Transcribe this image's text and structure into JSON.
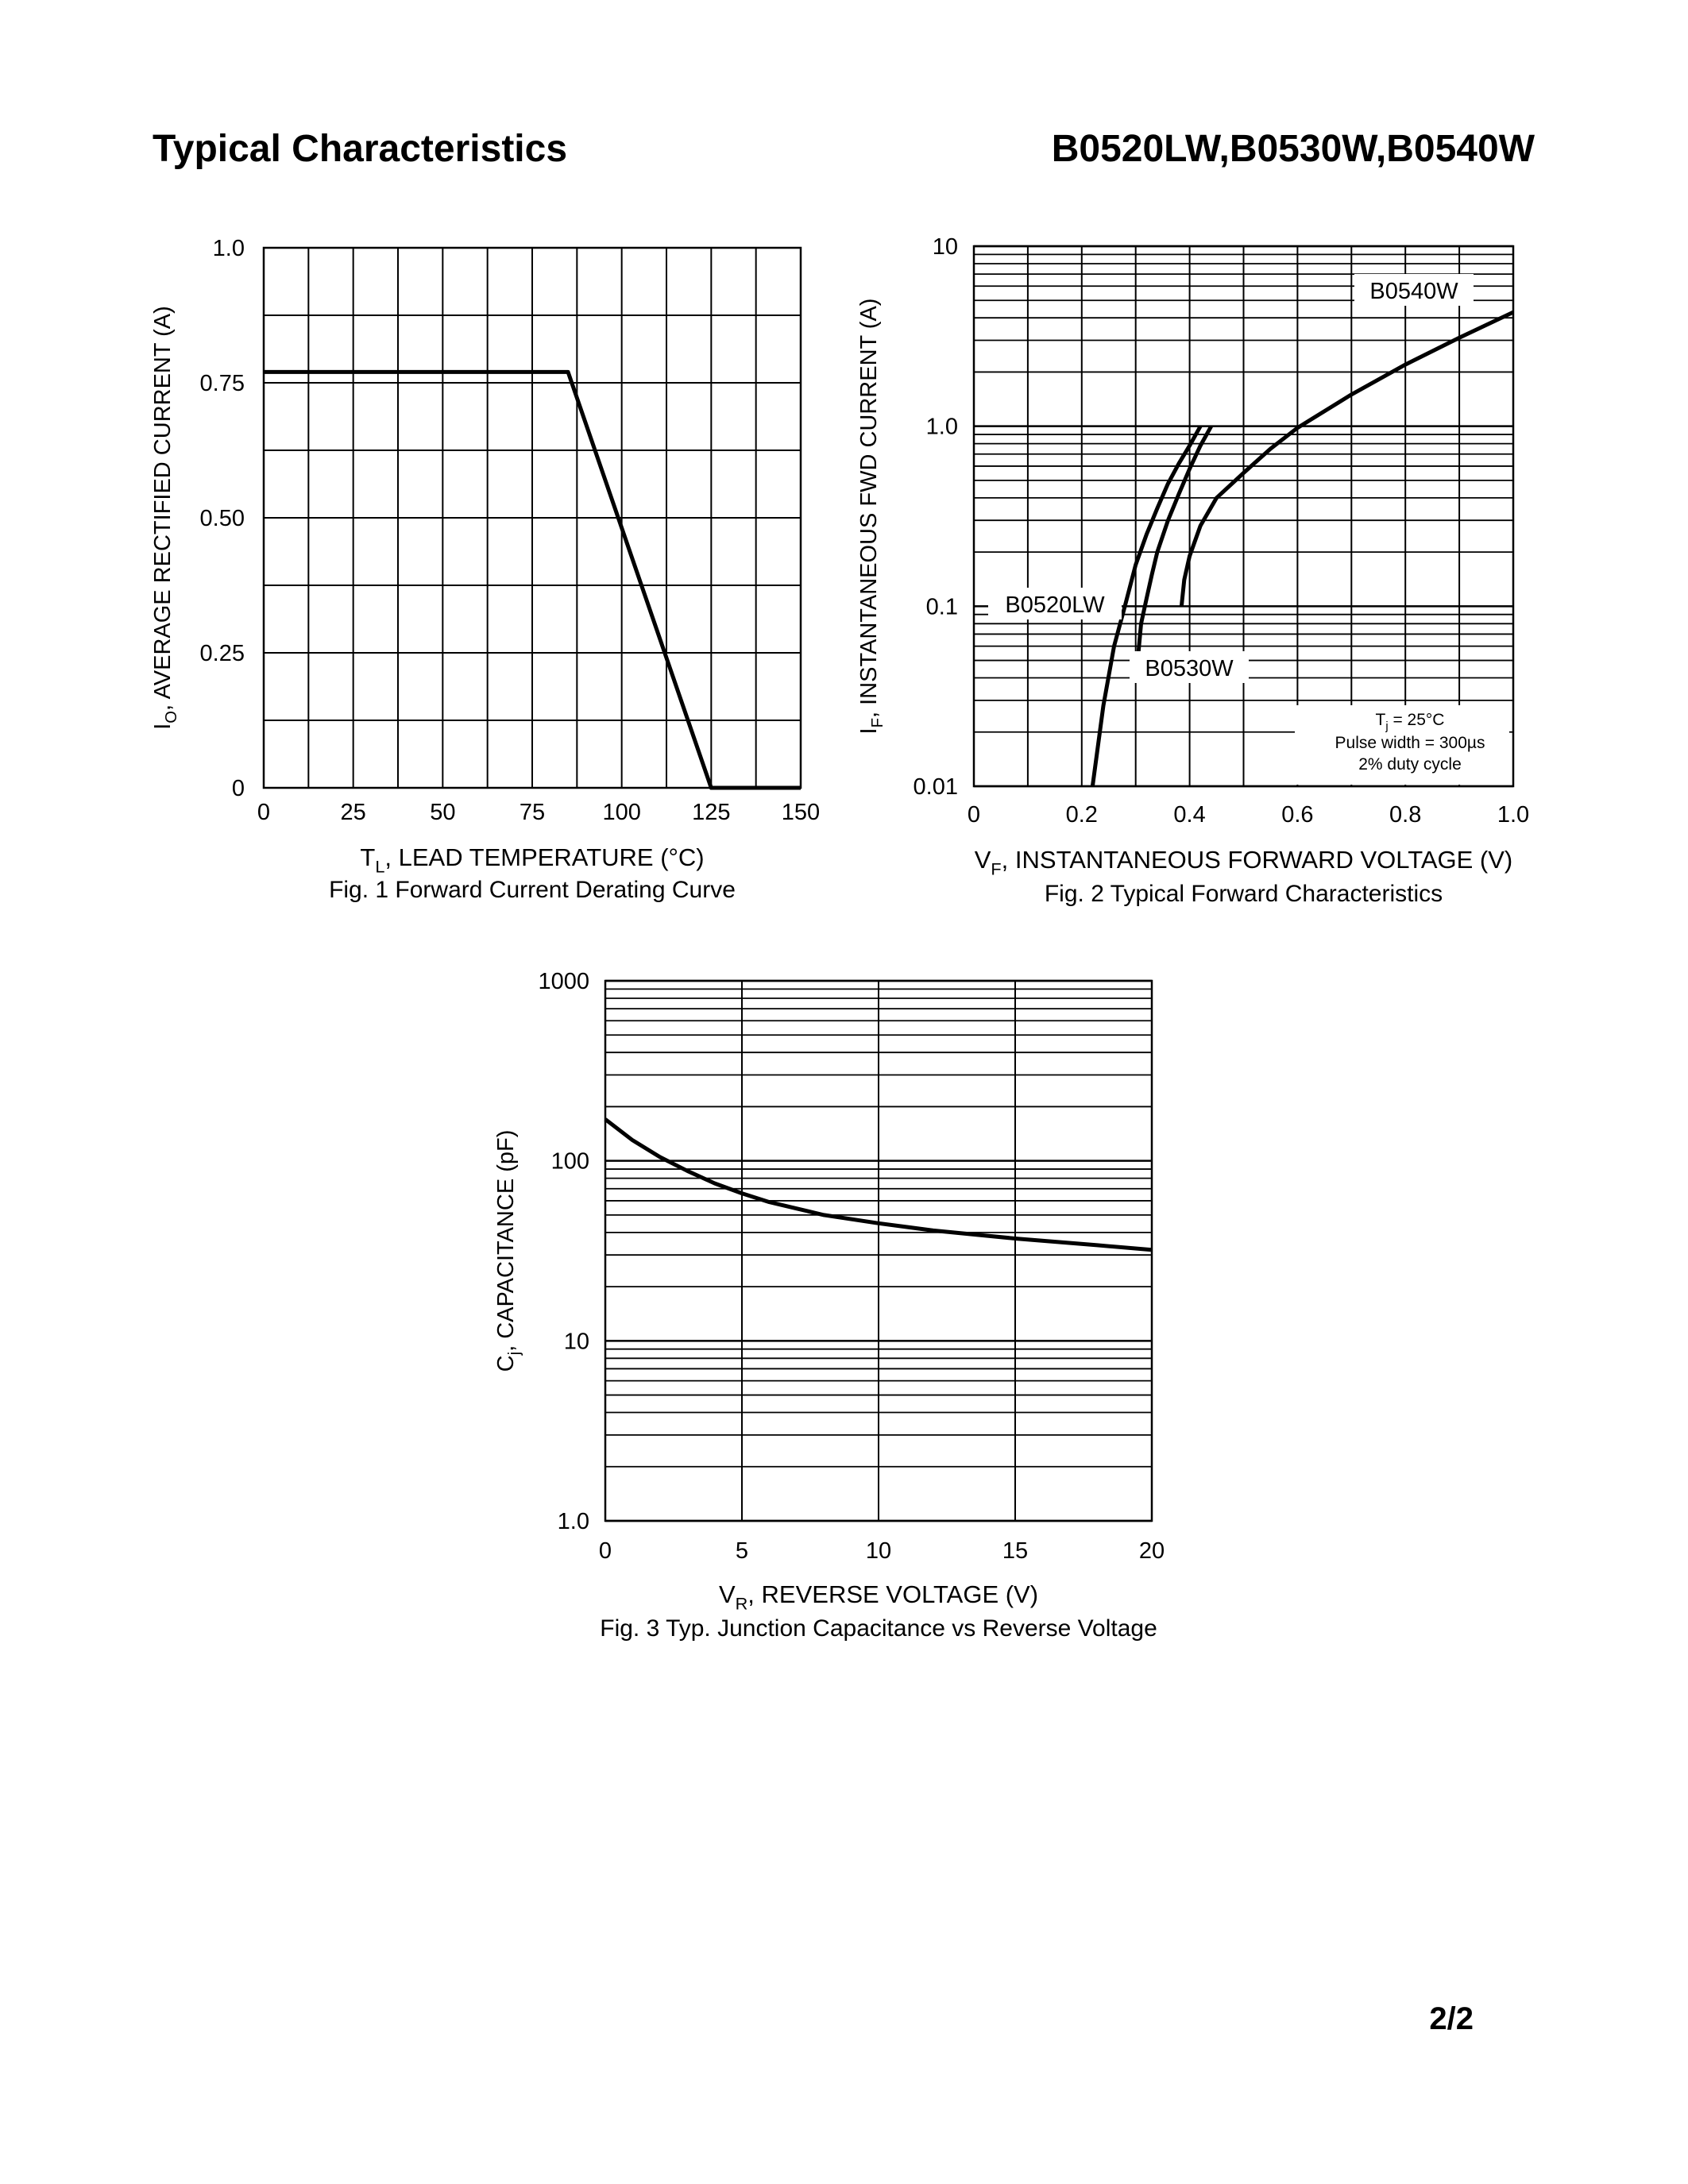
{
  "header": {
    "title": "Typical Characteristics",
    "parts": "B0520LW,B0530W,B0540W"
  },
  "footer": {
    "page": "2/2"
  },
  "chart_data": [
    {
      "type": "line",
      "caption": "Fig. 1  Forward Current Derating Curve",
      "xlabel_main": "T",
      "xlabel_sub": "L",
      "xlabel_rest": ", LEAD TEMPERATURE (°C)",
      "ylabel_main": "I",
      "ylabel_sub": "O",
      "ylabel_rest": ", AVERAGE RECTIFIED CURRENT (A)",
      "xlim": [
        0,
        150
      ],
      "ylim": [
        0,
        1.0
      ],
      "xticks": [
        0,
        25,
        50,
        75,
        100,
        125,
        150
      ],
      "xtick_labels": [
        "0",
        "25",
        "50",
        "75",
        "100",
        "125",
        "150"
      ],
      "yticks": [
        0,
        0.25,
        0.5,
        0.75,
        1.0
      ],
      "ytick_labels": [
        "0",
        "0.25",
        "0.50",
        "0.75",
        "1.0"
      ],
      "grid": true,
      "series": [
        {
          "x": [
            0,
            85,
            125,
            150
          ],
          "y": [
            0.77,
            0.77,
            0.0,
            0.0
          ]
        }
      ]
    },
    {
      "type": "line",
      "caption": "Fig. 2  Typical Forward Characteristics",
      "xlabel_main": "V",
      "xlabel_sub": "F",
      "xlabel_rest": ", INSTANTANEOUS FORWARD VOLTAGE (V)",
      "ylabel_main": "I",
      "ylabel_sub": "F",
      "ylabel_rest": ", INSTANTANEOUS FWD CURRENT (A)",
      "xlim": [
        0,
        1.0
      ],
      "ylim": [
        0.01,
        10
      ],
      "yscale": "log",
      "xticks": [
        0,
        0.2,
        0.4,
        0.6,
        0.8,
        1.0
      ],
      "xtick_labels": [
        "0",
        "0.2",
        "0.4",
        "0.6",
        "0.8",
        "1.0"
      ],
      "yticks": [
        0.01,
        0.1,
        1.0,
        10
      ],
      "ytick_labels": [
        "0.01",
        "0.1",
        "1.0",
        "10"
      ],
      "grid": true,
      "note": {
        "line1_main": "T",
        "line1_sub": "j",
        "line1_rest": " = 25°C",
        "line2": "Pulse width = 300µs",
        "line3": "2% duty cycle"
      },
      "series": [
        {
          "name": "B0520LW",
          "x": [
            0.22,
            0.24,
            0.26,
            0.28,
            0.3,
            0.32,
            0.34,
            0.36,
            0.38,
            0.4,
            0.42
          ],
          "y": [
            0.01,
            0.028,
            0.06,
            0.1,
            0.17,
            0.25,
            0.35,
            0.48,
            0.62,
            0.78,
            1.0
          ]
        },
        {
          "name": "B0530W",
          "x": [
            0.305,
            0.31,
            0.32,
            0.33,
            0.34,
            0.36,
            0.38,
            0.4,
            0.42,
            0.44
          ],
          "y": [
            0.055,
            0.08,
            0.11,
            0.15,
            0.2,
            0.3,
            0.42,
            0.58,
            0.78,
            1.0
          ]
        },
        {
          "name": "B0540W",
          "x": [
            0.385,
            0.39,
            0.4,
            0.42,
            0.45,
            0.5,
            0.55,
            0.6,
            0.7,
            0.8,
            0.9,
            1.0
          ],
          "y": [
            0.1,
            0.14,
            0.19,
            0.28,
            0.4,
            0.55,
            0.75,
            0.98,
            1.5,
            2.2,
            3.1,
            4.3
          ]
        }
      ]
    },
    {
      "type": "line",
      "caption": "Fig. 3  Typ. Junction Capacitance vs Reverse Voltage",
      "xlabel_main": "V",
      "xlabel_sub": "R",
      "xlabel_rest": ", REVERSE VOLTAGE (V)",
      "ylabel_main": "C",
      "ylabel_sub": "j",
      "ylabel_rest": ", CAPACITANCE (pF)",
      "xlim": [
        0,
        20
      ],
      "ylim": [
        1.0,
        1000
      ],
      "yscale": "log",
      "xticks": [
        0,
        5,
        10,
        15,
        20
      ],
      "xtick_labels": [
        "0",
        "5",
        "10",
        "15",
        "20"
      ],
      "yticks": [
        1,
        10,
        100,
        1000
      ],
      "ytick_labels": [
        "1.0",
        "10",
        "100",
        "1000"
      ],
      "grid": true,
      "series": [
        {
          "x": [
            0,
            1,
            2,
            3,
            4,
            5,
            6,
            8,
            10,
            12,
            15,
            18,
            20
          ],
          "y": [
            170,
            130,
            105,
            88,
            75,
            66,
            59,
            50,
            45,
            41,
            37,
            34,
            32
          ]
        }
      ]
    }
  ]
}
